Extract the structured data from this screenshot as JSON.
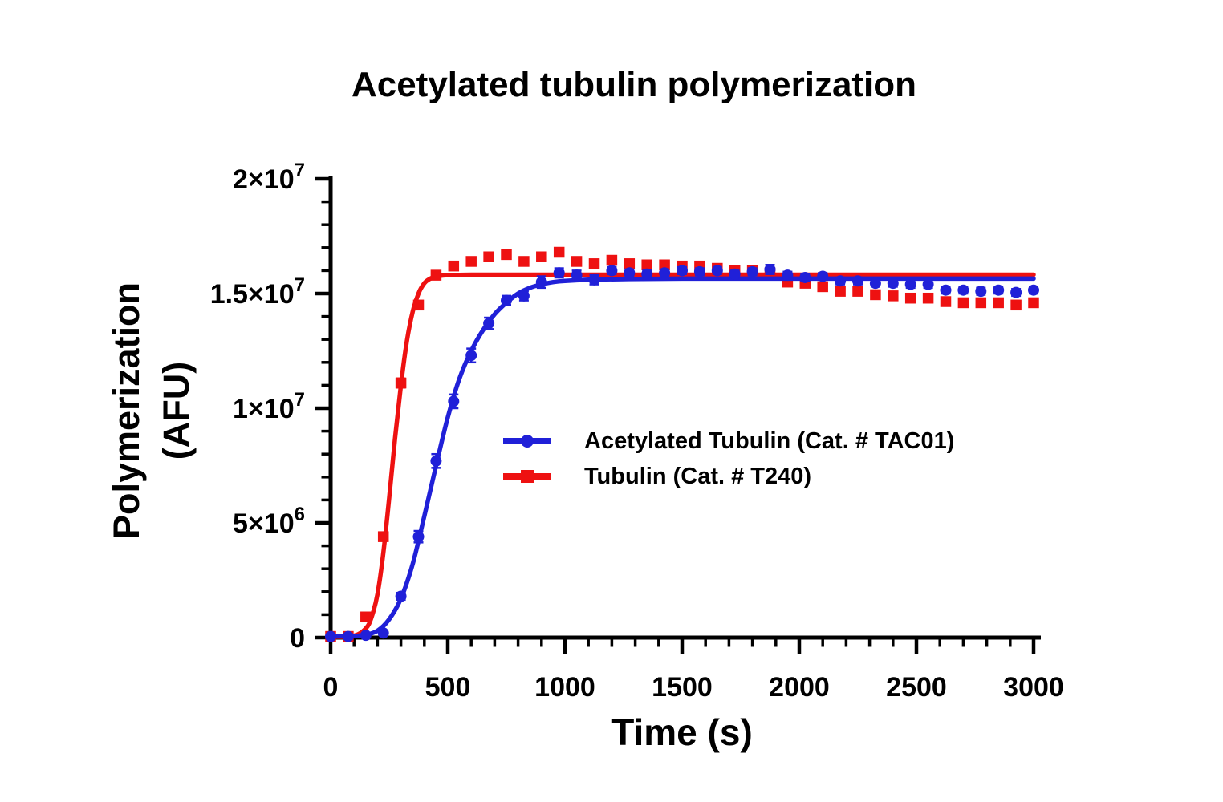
{
  "title": "Acetylated tubulin polymerization",
  "colors": {
    "blue": "#2020d8",
    "red": "#ee1111",
    "axis": "#000000",
    "background": "#ffffff"
  },
  "legend": {
    "items": [
      {
        "label": "Acetylated Tubulin (Cat. # TAC01)",
        "marker": "circle",
        "color": "#2020d8"
      },
      {
        "label": "Tubulin (Cat. # T240)",
        "marker": "square",
        "color": "#ee1111"
      }
    ]
  },
  "chart_data": {
    "type": "line",
    "title": "Acetylated tubulin polymerization",
    "xlabel": "Time (s)",
    "ylabel_line1": "Polymerization",
    "ylabel_line2": "(AFU)",
    "xlim": [
      0,
      3000
    ],
    "ylim": [
      0,
      20000000
    ],
    "grid": false,
    "legend_position": "inside-center",
    "x_major_ticks": [
      0,
      500,
      1000,
      1500,
      2000,
      2500,
      3000
    ],
    "x_tick_labels": [
      "0",
      "500",
      "1000",
      "1500",
      "2000",
      "2500",
      "3000"
    ],
    "x_minor_step": 100,
    "y_major_ticks": [
      0,
      5000000,
      10000000,
      15000000,
      20000000
    ],
    "y_tick_labels": [
      "0",
      "5×10^6",
      "1×10^7",
      "1.5×10^7",
      "2×10^7"
    ],
    "y_minor_step": 1000000,
    "series": [
      {
        "name": "Acetylated Tubulin (Cat. # TAC01)",
        "marker": "circle",
        "color": "#2020d8",
        "x": [
          0,
          75,
          150,
          225,
          300,
          375,
          450,
          525,
          600,
          675,
          750,
          825,
          900,
          975,
          1050,
          1125,
          1200,
          1275,
          1350,
          1425,
          1500,
          1575,
          1650,
          1725,
          1800,
          1875,
          1950,
          2025,
          2100,
          2175,
          2250,
          2325,
          2400,
          2475,
          2550,
          2625,
          2700,
          2775,
          2850,
          2925,
          3000
        ],
        "values": [
          50000,
          50000,
          100000,
          200000,
          1800000,
          4400000,
          7700000,
          10300000,
          12300000,
          13700000,
          14700000,
          14900000,
          15500000,
          15900000,
          15800000,
          15600000,
          16000000,
          15900000,
          15850000,
          15900000,
          16000000,
          15950000,
          16000000,
          15850000,
          15950000,
          16050000,
          15800000,
          15700000,
          15750000,
          15550000,
          15550000,
          15450000,
          15450000,
          15400000,
          15400000,
          15150000,
          15150000,
          15100000,
          15150000,
          15050000,
          15150000
        ],
        "errors": [
          50000,
          50000,
          50000,
          80000,
          150000,
          250000,
          300000,
          300000,
          300000,
          250000,
          200000,
          200000,
          250000,
          200000,
          200000,
          200000,
          150000,
          150000,
          150000,
          150000,
          150000,
          150000,
          150000,
          150000,
          150000,
          200000,
          150000,
          150000,
          150000,
          150000,
          150000,
          150000,
          150000,
          150000,
          150000,
          150000,
          150000,
          150000,
          150000,
          150000,
          150000
        ],
        "fit": [
          [
            0,
            50000
          ],
          [
            100,
            70000
          ],
          [
            150,
            120000
          ],
          [
            200,
            300000
          ],
          [
            250,
            800000
          ],
          [
            300,
            1700000
          ],
          [
            350,
            3200000
          ],
          [
            400,
            5300000
          ],
          [
            450,
            7500000
          ],
          [
            500,
            9600000
          ],
          [
            550,
            11300000
          ],
          [
            600,
            12500000
          ],
          [
            650,
            13400000
          ],
          [
            700,
            14100000
          ],
          [
            750,
            14600000
          ],
          [
            800,
            15000000
          ],
          [
            850,
            15250000
          ],
          [
            900,
            15400000
          ],
          [
            950,
            15500000
          ],
          [
            1000,
            15550000
          ],
          [
            1100,
            15600000
          ],
          [
            1250,
            15630000
          ],
          [
            1500,
            15650000
          ],
          [
            2000,
            15650000
          ],
          [
            2500,
            15650000
          ],
          [
            3000,
            15650000
          ]
        ]
      },
      {
        "name": "Tubulin (Cat. # T240)",
        "marker": "square",
        "color": "#ee1111",
        "x": [
          0,
          75,
          150,
          225,
          300,
          375,
          450,
          525,
          600,
          675,
          750,
          825,
          900,
          975,
          1050,
          1125,
          1200,
          1275,
          1350,
          1425,
          1500,
          1575,
          1650,
          1725,
          1800,
          1875,
          1950,
          2025,
          2100,
          2175,
          2250,
          2325,
          2400,
          2475,
          2550,
          2625,
          2700,
          2775,
          2850,
          2925,
          3000
        ],
        "values": [
          50000,
          50000,
          900000,
          4400000,
          11100000,
          14500000,
          15800000,
          16200000,
          16400000,
          16600000,
          16700000,
          16400000,
          16600000,
          16800000,
          16400000,
          16300000,
          16450000,
          16300000,
          16250000,
          16250000,
          16200000,
          16200000,
          16100000,
          16000000,
          16000000,
          15900000,
          15500000,
          15450000,
          15300000,
          15100000,
          15100000,
          14950000,
          14900000,
          14800000,
          14800000,
          14650000,
          14600000,
          14600000,
          14600000,
          14500000,
          14600000
        ],
        "errors": [
          50000,
          50000,
          100000,
          150000,
          200000,
          150000,
          100000,
          100000,
          100000,
          100000,
          100000,
          100000,
          100000,
          100000,
          100000,
          100000,
          100000,
          100000,
          100000,
          100000,
          100000,
          100000,
          100000,
          100000,
          100000,
          100000,
          100000,
          100000,
          100000,
          100000,
          100000,
          100000,
          100000,
          100000,
          100000,
          100000,
          100000,
          100000,
          100000,
          100000,
          100000
        ],
        "fit": [
          [
            0,
            30000
          ],
          [
            100,
            80000
          ],
          [
            150,
            400000
          ],
          [
            175,
            900000
          ],
          [
            200,
            1900000
          ],
          [
            225,
            3700000
          ],
          [
            250,
            6100000
          ],
          [
            275,
            8700000
          ],
          [
            300,
            11000000
          ],
          [
            325,
            12900000
          ],
          [
            350,
            14200000
          ],
          [
            375,
            15000000
          ],
          [
            400,
            15450000
          ],
          [
            425,
            15650000
          ],
          [
            450,
            15750000
          ],
          [
            500,
            15800000
          ],
          [
            600,
            15820000
          ],
          [
            900,
            15820000
          ],
          [
            1500,
            15820000
          ],
          [
            2250,
            15820000
          ],
          [
            3000,
            15820000
          ]
        ]
      }
    ]
  }
}
